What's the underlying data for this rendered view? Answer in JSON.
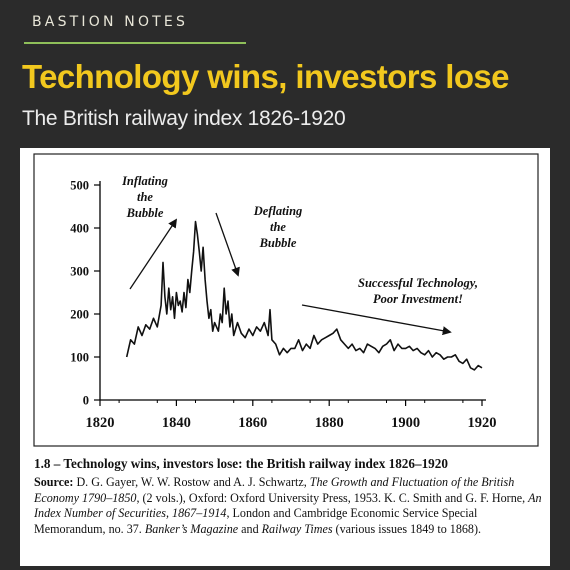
{
  "header": {
    "brand": "BASTION NOTES",
    "title": "Technology wins, investors lose",
    "subtitle": "The British railway index 1826-1920"
  },
  "colors": {
    "background": "#2b2b2b",
    "accent_yellow": "#f2c81e",
    "rule_green": "#8fbf5a",
    "panel": "#ffffff"
  },
  "chart_data": {
    "type": "line",
    "title": "",
    "xlabel": "",
    "ylabel": "",
    "xlim": [
      1820,
      1920
    ],
    "ylim": [
      0,
      500
    ],
    "x_ticks": [
      1820,
      1840,
      1860,
      1880,
      1900,
      1920
    ],
    "y_ticks": [
      0,
      100,
      200,
      300,
      400,
      500
    ],
    "grid": false,
    "series": [
      {
        "x": [
          1827,
          1828,
          1829,
          1830,
          1831,
          1832,
          1833,
          1834,
          1835,
          1836,
          1836.5,
          1837,
          1837.5,
          1838,
          1838.5,
          1839,
          1839.5,
          1840,
          1840.5,
          1841,
          1841.5,
          1842,
          1842.5,
          1843,
          1843.5,
          1844,
          1844.5,
          1845,
          1845.5,
          1846,
          1846.5,
          1847,
          1847.5,
          1848,
          1848.5,
          1849,
          1849.5,
          1850,
          1851,
          1851.5,
          1852,
          1852.5,
          1853,
          1853.5,
          1854,
          1854.5,
          1855,
          1856,
          1857,
          1858,
          1859,
          1860,
          1861,
          1862,
          1863,
          1864,
          1864.5,
          1865,
          1866,
          1867,
          1868,
          1869,
          1870,
          1871,
          1872,
          1873,
          1874,
          1875,
          1876,
          1877,
          1878,
          1879,
          1880,
          1881,
          1882,
          1883,
          1884,
          1885,
          1886,
          1887,
          1888,
          1889,
          1890,
          1891,
          1892,
          1893,
          1894,
          1895,
          1896,
          1897,
          1898,
          1899,
          1900,
          1901,
          1902,
          1903,
          1904,
          1905,
          1906,
          1907,
          1908,
          1909,
          1910,
          1911,
          1912,
          1913,
          1914,
          1915,
          1916,
          1917,
          1918,
          1919,
          1920
        ],
        "values": [
          100,
          140,
          130,
          170,
          150,
          175,
          165,
          190,
          170,
          220,
          320,
          240,
          200,
          260,
          210,
          240,
          190,
          250,
          220,
          230,
          205,
          250,
          215,
          280,
          250,
          300,
          345,
          415,
          385,
          345,
          300,
          355,
          280,
          230,
          190,
          210,
          160,
          180,
          160,
          200,
          180,
          260,
          200,
          230,
          170,
          200,
          150,
          180,
          155,
          145,
          165,
          150,
          170,
          160,
          180,
          150,
          210,
          140,
          130,
          105,
          120,
          110,
          120,
          120,
          140,
          115,
          130,
          120,
          150,
          130,
          140,
          145,
          150,
          155,
          165,
          140,
          130,
          120,
          130,
          115,
          120,
          110,
          130,
          125,
          120,
          110,
          125,
          130,
          140,
          115,
          130,
          120,
          120,
          125,
          115,
          120,
          110,
          105,
          115,
          100,
          110,
          105,
          95,
          100,
          100,
          105,
          90,
          85,
          95,
          75,
          70,
          80,
          75
        ]
      }
    ],
    "annotations": [
      {
        "text": [
          "Inflating",
          "the",
          "Bubble"
        ]
      },
      {
        "text": [
          "Deflating",
          "the",
          "Bubble"
        ]
      },
      {
        "text": [
          "Successful Technology,",
          "Poor Investment!"
        ]
      }
    ]
  },
  "caption": {
    "title": "1.8 – Technology wins, investors lose: the British railway index 1826–1920",
    "source_label": "Source:",
    "s1": " D. G. Gayer, W. W. Rostow and A. J. Schwartz, ",
    "s2": "The Growth and Fluctuation of the British Economy 1790–1850",
    "s3": ", (2 vols.), Oxford: Oxford University Press, 1953. K. C. Smith and G. F. Horne, ",
    "s4": "An Index Number of Securities, 1867–1914",
    "s5": ", London and Cambridge Economic Service Special Memorandum, no. 37. ",
    "s6": "Banker’s Magazine",
    "s7": " and ",
    "s8": "Railway Times",
    "s9": " (various issues 1849 to 1868)."
  }
}
